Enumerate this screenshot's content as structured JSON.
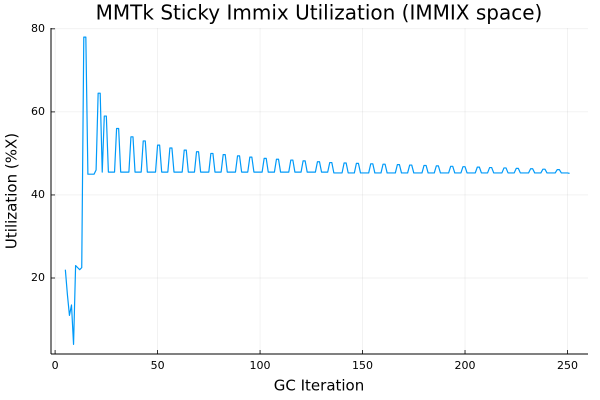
{
  "chart_data": {
    "type": "line",
    "title": "MMTk Sticky Immix Utilization (IMMIX space)",
    "xlabel": "GC Iteration",
    "ylabel": "Utilization (%X)",
    "color": "#009af9",
    "grid": true,
    "xlim": [
      -2,
      260
    ],
    "ylim": [
      1.7,
      80.2
    ],
    "xticks": [
      0,
      50,
      100,
      150,
      200,
      250
    ],
    "yticks": [
      20,
      40,
      60,
      80
    ],
    "x": [
      5,
      6,
      7,
      8,
      9,
      10,
      11,
      12,
      13,
      14,
      15,
      16,
      17,
      18,
      19,
      20,
      21,
      22,
      23,
      24,
      25,
      26,
      27,
      28,
      29,
      30,
      31,
      32,
      33,
      34,
      35,
      36,
      37,
      38,
      39,
      40,
      41,
      42,
      43,
      44,
      45,
      46,
      47,
      48,
      49,
      50,
      51,
      52,
      53,
      54,
      55,
      56,
      57,
      58,
      59,
      60,
      61,
      62,
      63,
      64,
      65,
      66,
      67,
      68,
      69,
      70,
      71,
      72,
      73,
      74,
      75,
      76,
      77,
      78,
      79,
      80,
      81,
      82,
      83,
      84,
      85,
      86,
      87,
      88,
      89,
      90,
      91,
      92,
      93,
      94,
      95,
      96,
      97,
      98,
      99,
      100,
      101,
      102,
      103,
      104,
      105,
      106,
      107,
      108,
      109,
      110,
      111,
      112,
      113,
      114,
      115,
      116,
      117,
      118,
      119,
      120,
      121,
      122,
      123,
      124,
      125,
      126,
      127,
      128,
      129,
      130,
      131,
      132,
      133,
      134,
      135,
      136,
      137,
      138,
      139,
      140,
      141,
      142,
      143,
      144,
      145,
      146,
      147,
      148,
      149,
      150,
      151,
      152,
      153,
      154,
      155,
      156,
      157,
      158,
      159,
      160,
      161,
      162,
      163,
      164,
      165,
      166,
      167,
      168,
      169,
      170,
      171,
      172,
      173,
      174,
      175,
      176,
      177,
      178,
      179,
      180,
      181,
      182,
      183,
      184,
      185,
      186,
      187,
      188,
      189,
      190,
      191,
      192,
      193,
      194,
      195,
      196,
      197,
      198,
      199,
      200,
      201,
      202,
      203,
      204,
      205,
      206,
      207,
      208,
      209,
      210,
      211,
      212,
      213,
      214,
      215,
      216,
      217,
      218,
      219,
      220,
      221,
      222,
      223,
      224,
      225,
      226,
      227,
      228,
      229,
      230,
      231,
      232,
      233,
      234,
      235,
      236,
      237,
      238,
      239,
      240,
      241,
      242,
      243,
      244,
      245,
      246,
      247,
      248,
      249,
      250,
      251
    ],
    "values": [
      22,
      16,
      11,
      13.5,
      4,
      23,
      22.5,
      22,
      22.5,
      78,
      78,
      45,
      45,
      45,
      45,
      46,
      64.5,
      64.5,
      45.5,
      59,
      59,
      45.5,
      45.5,
      45.5,
      45.5,
      56,
      56,
      45.5,
      45.5,
      45.5,
      45.5,
      45.5,
      54,
      54,
      45.5,
      45.5,
      45.5,
      45.5,
      53,
      53,
      45.5,
      45.5,
      45.5,
      45.5,
      45.5,
      52,
      52,
      45.5,
      45.5,
      45.5,
      45.5,
      51.3,
      51.3,
      45.5,
      45.5,
      45.5,
      45.5,
      45.5,
      50.8,
      50.8,
      45.5,
      45.5,
      45.5,
      45.5,
      50.4,
      50.4,
      45.5,
      45.5,
      45.5,
      45.5,
      45.5,
      50,
      50,
      45.5,
      45.5,
      45.5,
      45.5,
      49.7,
      49.7,
      45.5,
      45.5,
      45.5,
      45.5,
      45.5,
      49.4,
      49.4,
      45.5,
      45.5,
      45.5,
      45.5,
      49.1,
      49.1,
      45.5,
      45.5,
      45.5,
      45.5,
      45.5,
      48.8,
      48.8,
      45.5,
      45.5,
      45.5,
      45.5,
      48.6,
      48.6,
      45.5,
      45.5,
      45.5,
      45.5,
      45.5,
      48.4,
      48.4,
      45.5,
      45.5,
      45.5,
      45.5,
      48.2,
      48.2,
      45.5,
      45.5,
      45.5,
      45.5,
      45.5,
      48,
      48,
      45.5,
      45.5,
      45.5,
      45.5,
      47.8,
      47.8,
      45.3,
      45.3,
      45.3,
      45.3,
      45.3,
      47.7,
      47.7,
      45.3,
      45.3,
      45.3,
      45.3,
      47.6,
      47.6,
      45.3,
      45.3,
      45.3,
      45.3,
      45.3,
      47.5,
      47.5,
      45.3,
      45.3,
      45.3,
      45.3,
      47.4,
      47.4,
      45.3,
      45.3,
      45.3,
      45.3,
      45.3,
      47.3,
      47.3,
      45.3,
      45.3,
      45.3,
      45.3,
      47.2,
      47.2,
      45.3,
      45.3,
      45.3,
      45.3,
      45.3,
      47.1,
      47.1,
      45.3,
      45.3,
      45.3,
      45.3,
      47,
      47,
      45.3,
      45.3,
      45.3,
      45.3,
      45.3,
      46.9,
      46.9,
      45.3,
      45.3,
      45.3,
      45.3,
      46.8,
      46.8,
      45.3,
      45.3,
      45.3,
      45.3,
      45.3,
      46.7,
      46.7,
      45.3,
      45.3,
      45.3,
      45.3,
      46.6,
      46.6,
      45.3,
      45.3,
      45.3,
      45.3,
      45.3,
      46.5,
      46.5,
      45.3,
      45.3,
      45.3,
      45.3,
      46.4,
      46.4,
      45.3,
      45.3,
      45.3,
      45.3,
      45.3,
      46.3,
      46.3,
      45.3,
      45.3,
      45.3,
      45.3,
      46.2,
      46.2,
      45.3,
      45.3,
      45.3,
      45.3,
      45.3,
      46.1,
      46.1,
      45.3,
      45.3,
      45.3,
      45.3,
      45.2
    ]
  }
}
